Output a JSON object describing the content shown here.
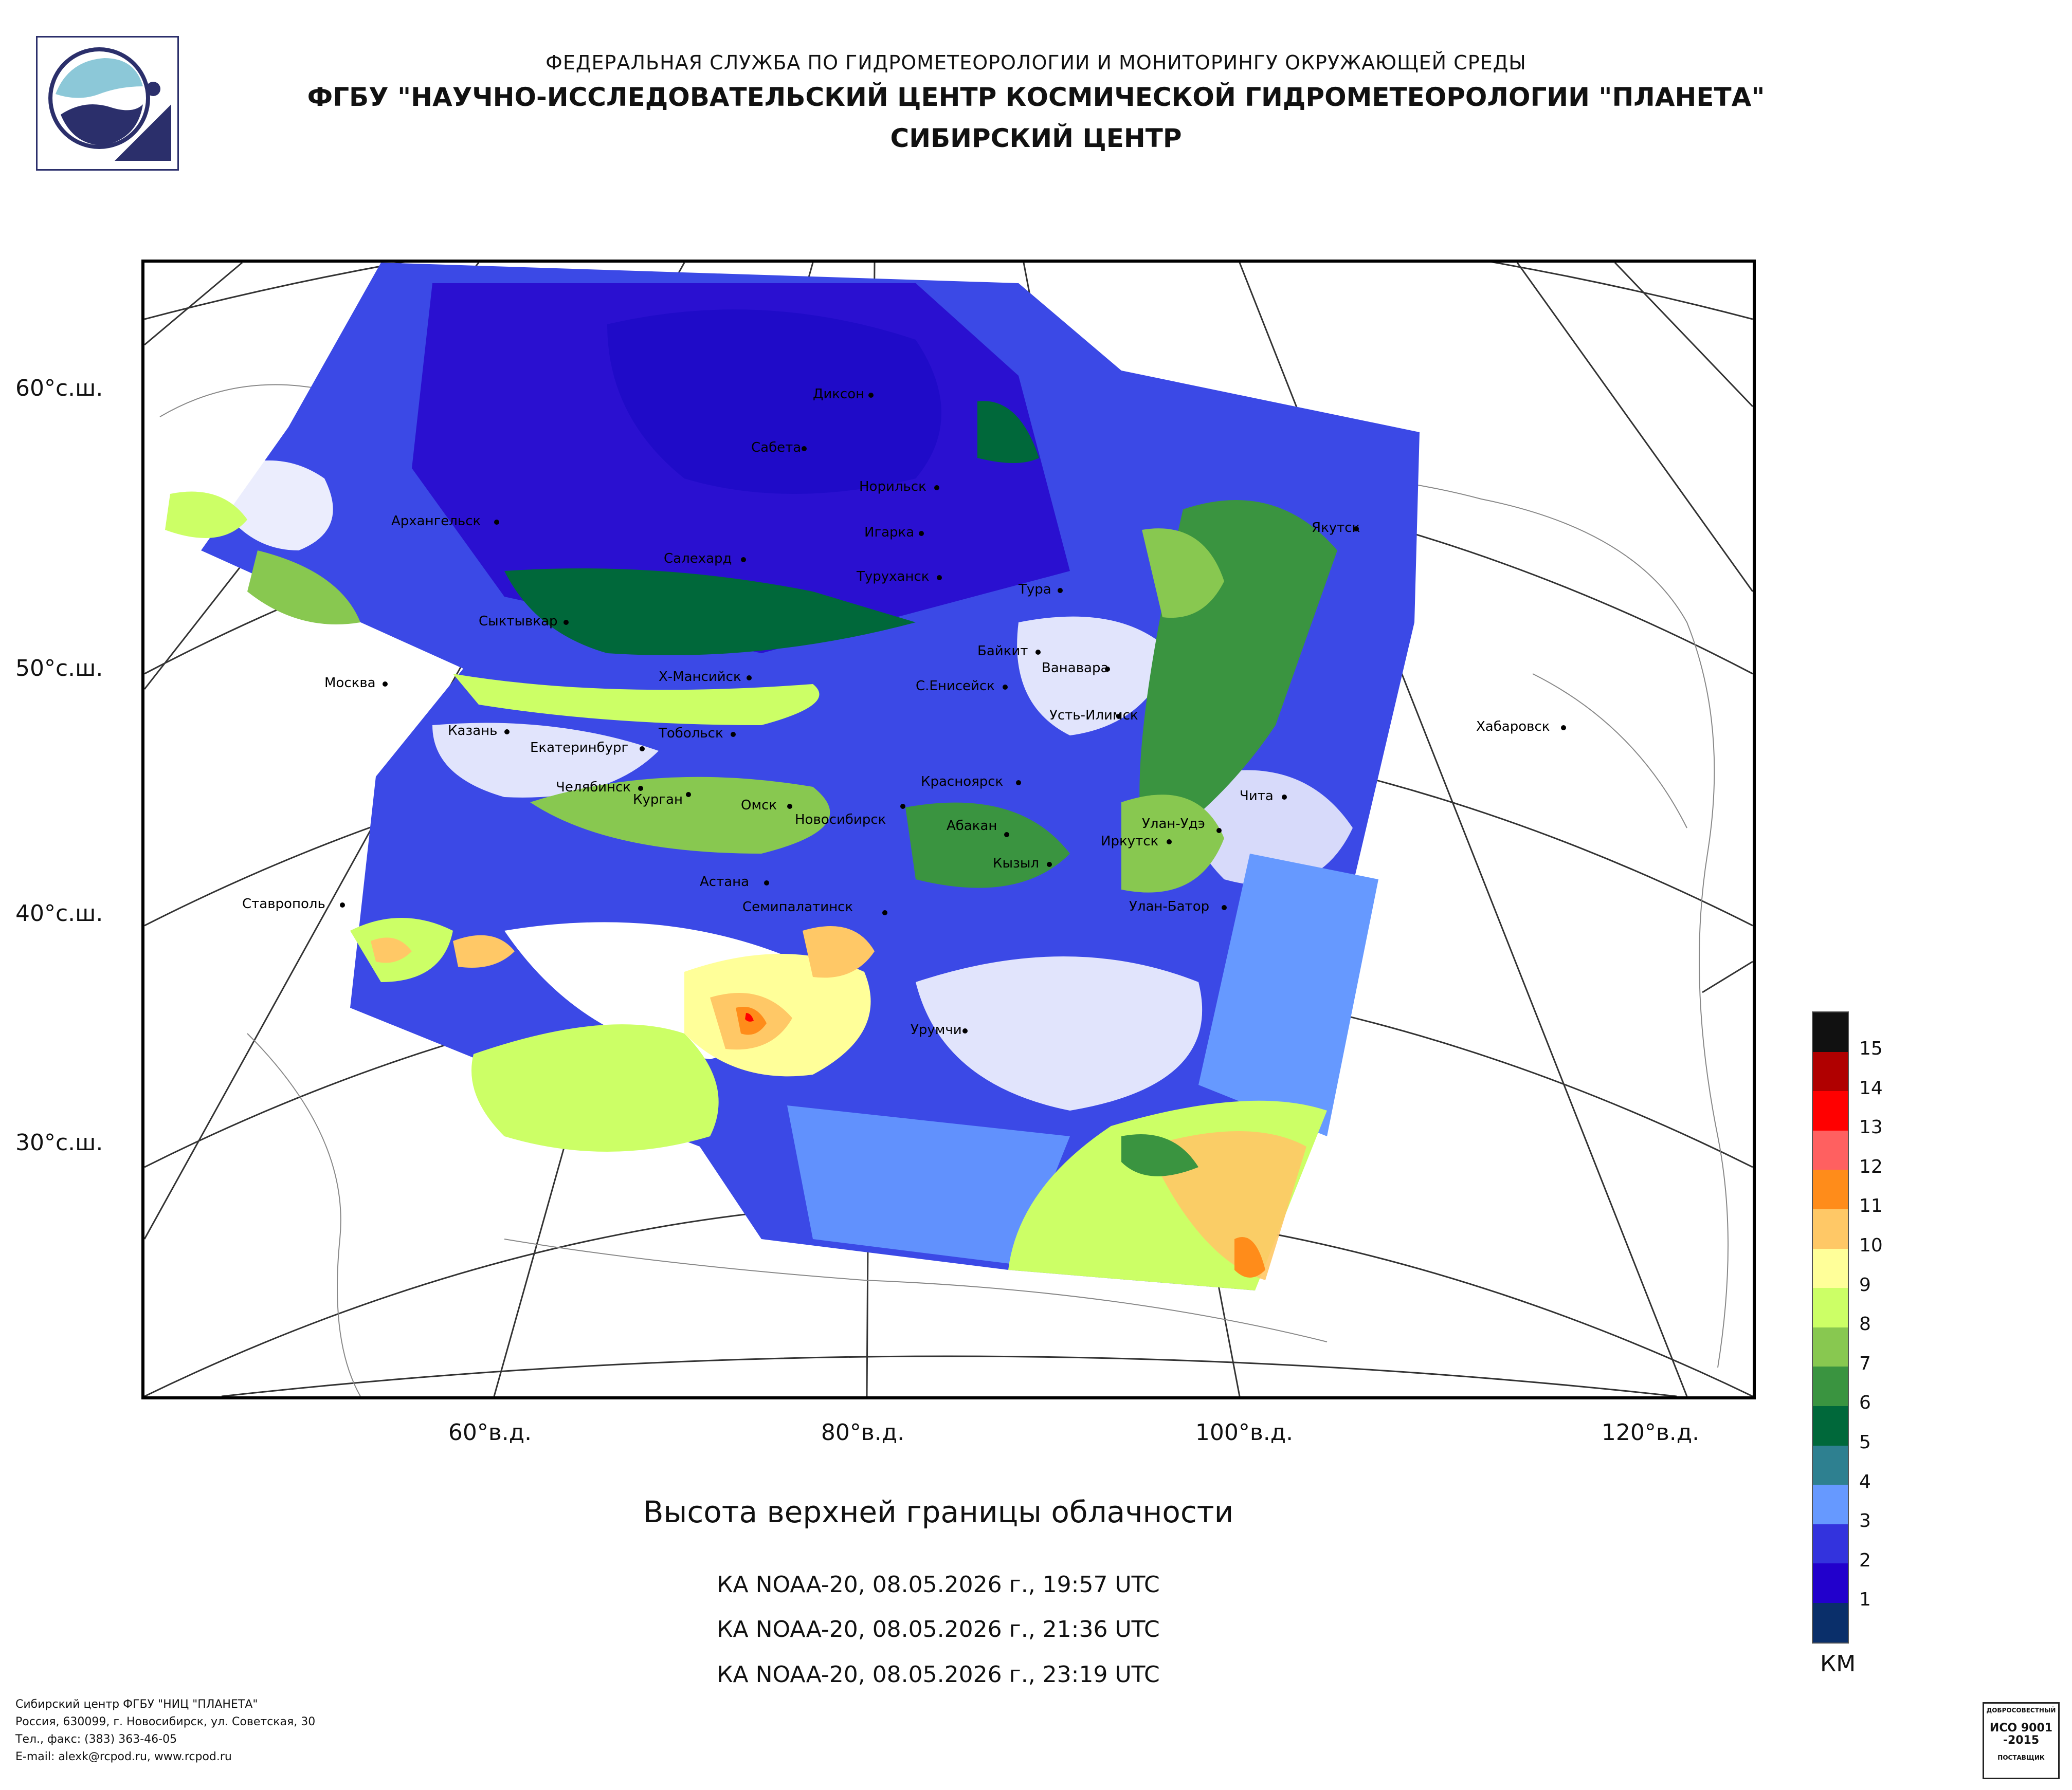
{
  "header": {
    "line1": "ФЕДЕРАЛЬНАЯ СЛУЖБА ПО ГИДРОМЕТЕОРОЛОГИИ И МОНИТОРИНГУ ОКРУЖАЮЩЕЙ СРЕДЫ",
    "line2": "ФГБУ \"НАУЧНО-ИССЛЕДОВАТЕЛЬСКИЙ ЦЕНТР КОСМИЧЕСКОЙ ГИДРОМЕТЕОРОЛОГИИ \"ПЛАНЕТА\"",
    "line3": "СИБИРСКИЙ ЦЕНТР"
  },
  "map": {
    "lat_labels": [
      "60°с.ш.",
      "50°с.ш.",
      "40°с.ш.",
      "30°с.ш."
    ],
    "lon_labels": [
      "60°в.д.",
      "80°в.д.",
      "100°в.д.",
      "120°в.д."
    ],
    "cities": {
      "c1": "Диксон",
      "c2": "Сабета",
      "c3": "Норильск",
      "c4": "Игарка",
      "c5": "Архангельск",
      "c6": "Салехард",
      "c7": "Туруханск",
      "c8": "Тура",
      "c9": "Якутск",
      "c10": "Сыктывкар",
      "c11": "Байкит",
      "c12": "Ванавара",
      "c13": "Москва",
      "c14": "Х-Мансийск",
      "c15": "С.Енисейск",
      "c16": "Усть-Илимск",
      "c17": "Казань",
      "c18": "Тобольск",
      "c19": "Хабаровск",
      "c20": "Екатеринбург",
      "c21": "Красноярск",
      "c22": "Челябинск",
      "c23": "Курган",
      "c24": "Омск",
      "c25": "Чита",
      "c26": "Новосибирск",
      "c27": "Абакан",
      "c28": "Улан-Удэ",
      "c29": "Иркутск",
      "c30": "Кызыл",
      "c31": "Астана",
      "c32": "Ставрополь",
      "c33": "Семипалатинск",
      "c34": "Улан-Батор",
      "c35": "Урумчи"
    }
  },
  "title": "Высота верхней границы облачности",
  "passes": [
    "КА NOAA-20, 08.05.2026 г., 19:57 UTC",
    "КА NOAA-20, 08.05.2026 г., 21:36 UTC",
    "КА NOAA-20, 08.05.2026 г., 23:19 UTC"
  ],
  "legend": {
    "unit": "КМ",
    "levels": [
      "15",
      "14",
      "13",
      "12",
      "11",
      "10",
      "9",
      "8",
      "7",
      "6",
      "5",
      "4",
      "3",
      "2",
      "1"
    ],
    "colors": [
      "#111111",
      "#b00000",
      "#ff0000",
      "#ff6060",
      "#ff8c1a",
      "#ffc866",
      "#ffff99",
      "#ccff66",
      "#88c850",
      "#3a9440",
      "#00683a",
      "#2e8090",
      "#6699ff",
      "#3333dd",
      "#2200cc",
      "#0a2f6a"
    ]
  },
  "footer": {
    "l1": "Сибирский центр ФГБУ \"НИЦ \"ПЛАНЕТА\"",
    "l2": "Россия, 630099, г. Новосибирск, ул. Советская, 30",
    "l3": "Тел., факс: (383) 363-46-05",
    "l4": "E-mail: alexk@rcpod.ru, www.rcpod.ru"
  },
  "iso_badge": {
    "top": "ДОБРОСОВЕСТНЫЙ",
    "main": "ИСО 9001 -2015",
    "bottom": "ПОСТАВЩИК"
  }
}
